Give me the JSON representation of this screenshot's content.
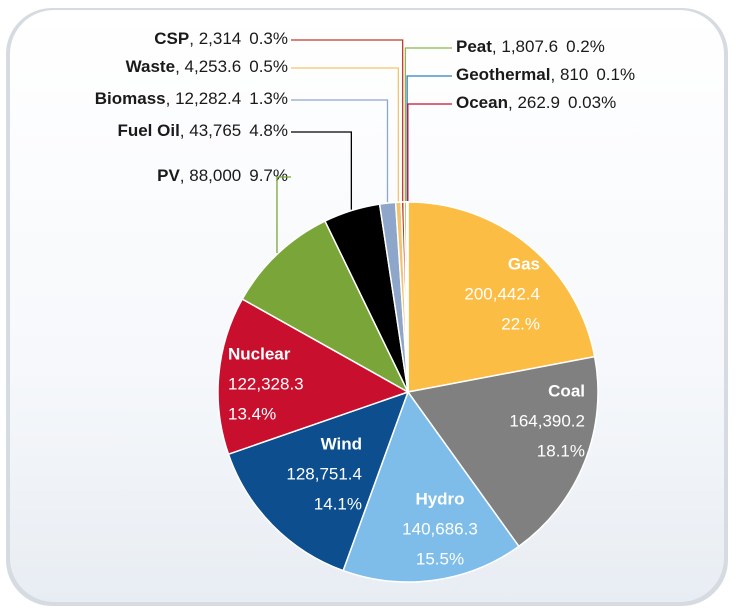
{
  "chart_data": {
    "type": "pie",
    "categories": [
      "Gas",
      "Coal",
      "Hydro",
      "Wind",
      "Nuclear",
      "PV",
      "Fuel Oil",
      "Biomass",
      "Waste",
      "CSP",
      "Peat",
      "Geothermal",
      "Ocean"
    ],
    "values": [
      200442.4,
      164390.2,
      140686.3,
      128751.4,
      122328.3,
      88000,
      43765,
      12282.4,
      4253.6,
      2314,
      1807.6,
      810,
      262.9
    ],
    "value_labels": [
      "200,442.4",
      "164,390.2",
      "140,686.3",
      "128,751.4",
      "122,328.3",
      "88,000",
      "43,765",
      "12,282.4",
      "4,253.6",
      "2,314",
      "1,807.6",
      "810",
      "262.9"
    ],
    "percents": [
      22,
      18.1,
      15.5,
      14.1,
      13.4,
      9.7,
      4.8,
      1.3,
      0.5,
      0.3,
      0.2,
      0.1,
      0.03
    ],
    "percent_labels": [
      "22.%",
      "18.1%",
      "15.5%",
      "14.1%",
      "13.4%",
      "9.7%",
      "4.8%",
      "1.3%",
      "0.5%",
      "0.3%",
      "0.2%",
      "0.1%",
      "0.03%"
    ],
    "colors": [
      "#fbbd44",
      "#808080",
      "#7ebde9",
      "#0c4e8e",
      "#c8102e",
      "#79a539",
      "#000000",
      "#8ea6c9",
      "#f4c46c",
      "#c0392b",
      "#8ab84f",
      "#2f7fc1",
      "#c8102e"
    ]
  }
}
